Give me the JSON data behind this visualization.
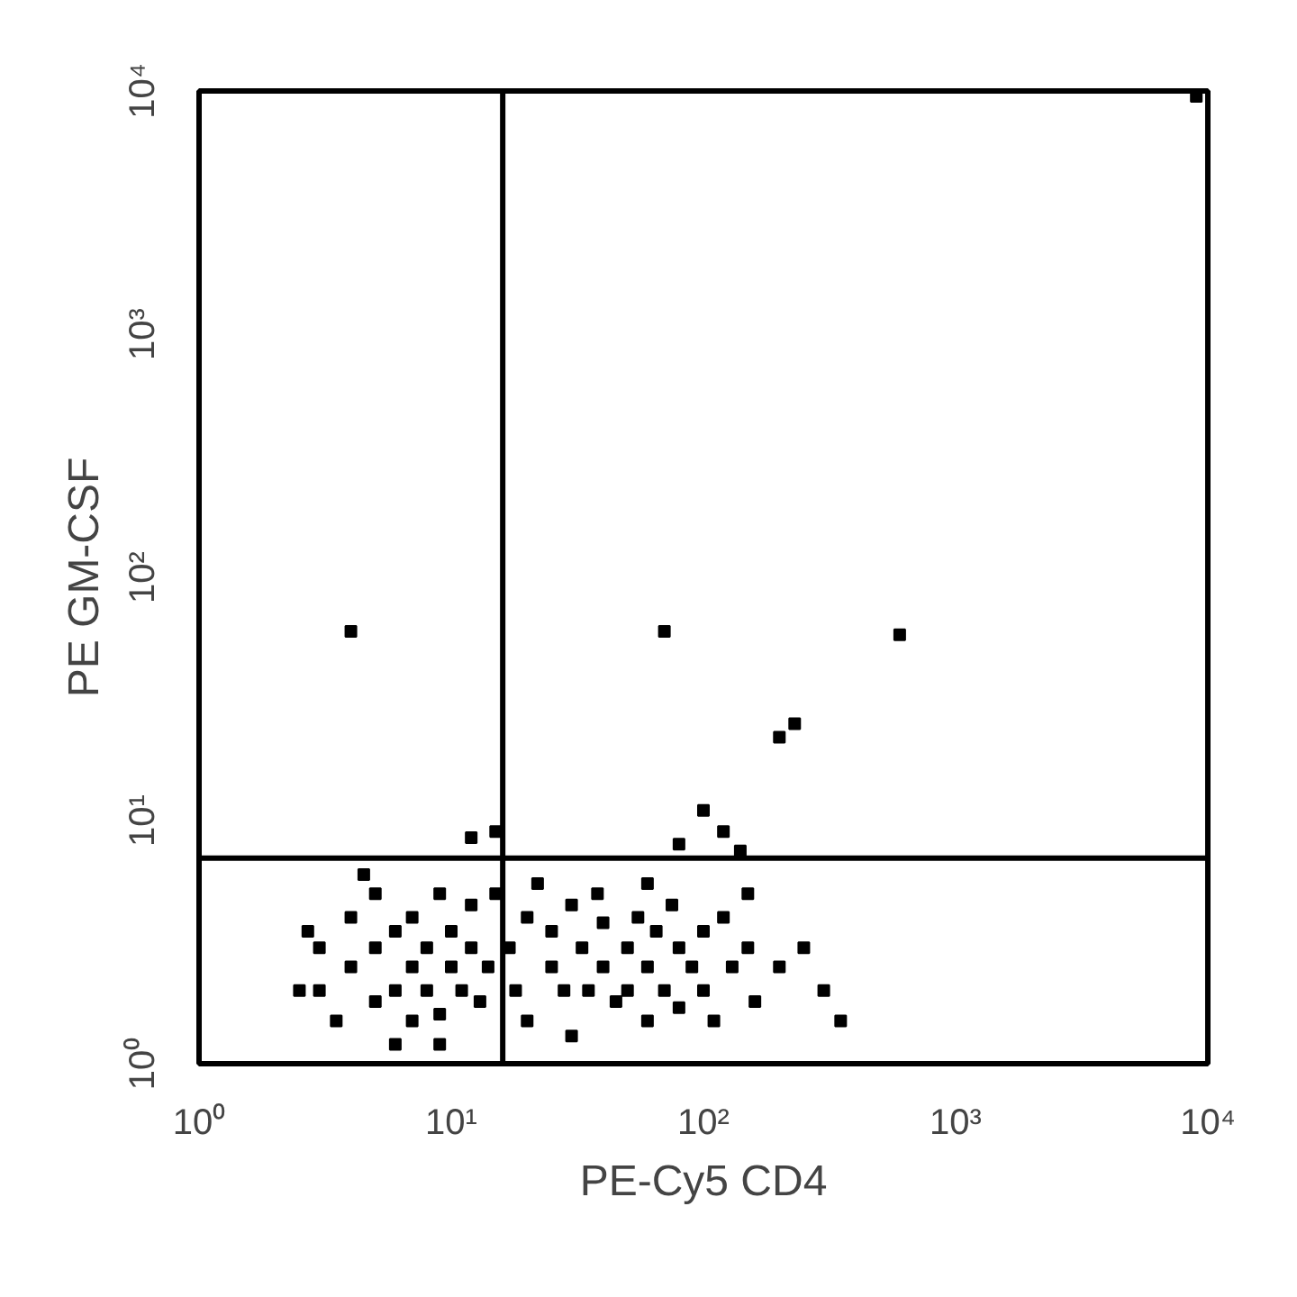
{
  "chart_data": {
    "type": "scatter",
    "xlabel": "PE-Cy5 CD4",
    "ylabel": "PE GM-CSF",
    "log": "xy",
    "grid": false,
    "marker": "square",
    "xlim": [
      1,
      10000
    ],
    "ylim": [
      1,
      10000
    ],
    "xticks": [
      {
        "value": 1,
        "label": "10⁰"
      },
      {
        "value": 10,
        "label": "10¹"
      },
      {
        "value": 100,
        "label": "10²"
      },
      {
        "value": 1000,
        "label": "10³"
      },
      {
        "value": 10000,
        "label": "10⁴"
      }
    ],
    "yticks": [
      {
        "value": 1,
        "label": "10⁰"
      },
      {
        "value": 10,
        "label": "10¹"
      },
      {
        "value": 100,
        "label": "10²"
      },
      {
        "value": 1000,
        "label": "10³"
      },
      {
        "value": 10000,
        "label": "10⁴"
      }
    ],
    "ref_lines": [
      {
        "axis": "x",
        "value": 16,
        "color": "#000000"
      },
      {
        "axis": "y",
        "value": 7,
        "color": "#000000"
      }
    ],
    "series": [
      {
        "color": "#000000",
        "x": [
          3,
          3,
          3.5,
          4,
          4,
          5,
          5,
          5,
          6,
          6,
          7,
          7,
          7,
          8,
          8,
          9,
          9,
          10,
          10,
          11,
          12,
          12,
          13,
          14,
          15,
          2.5,
          2.7,
          6,
          9,
          4.5,
          17,
          18,
          20,
          20,
          22,
          25,
          25,
          28,
          30,
          30,
          33,
          35,
          38,
          40,
          40,
          45,
          50,
          50,
          55,
          60,
          60,
          65,
          70,
          75,
          80,
          80,
          90,
          100,
          100,
          110,
          120,
          130,
          150,
          160,
          200,
          250,
          300,
          350,
          150,
          60,
          12,
          15,
          80,
          100,
          120,
          140,
          4,
          70,
          600,
          230,
          200,
          9000
        ],
        "values": [
          2,
          3,
          1.5,
          2.5,
          4,
          1.8,
          3,
          5,
          2,
          3.5,
          1.5,
          2.5,
          4,
          3,
          2,
          5,
          1.6,
          2.5,
          3.5,
          2,
          4.5,
          3,
          1.8,
          2.5,
          5,
          2,
          3.5,
          1.2,
          1.2,
          6,
          3,
          2,
          4,
          1.5,
          5.5,
          2.5,
          3.5,
          2,
          4.5,
          1.3,
          3,
          2,
          5,
          2.5,
          3.8,
          1.8,
          3,
          2,
          4,
          2.5,
          1.5,
          3.5,
          2,
          4.5,
          3,
          1.7,
          2.5,
          3.5,
          2,
          1.5,
          4,
          2.5,
          3,
          1.8,
          2.5,
          3,
          2,
          1.5,
          5,
          5.5,
          8.5,
          9,
          8,
          11,
          9,
          7.5,
          60,
          60,
          58,
          25,
          22,
          9500
        ]
      }
    ]
  }
}
